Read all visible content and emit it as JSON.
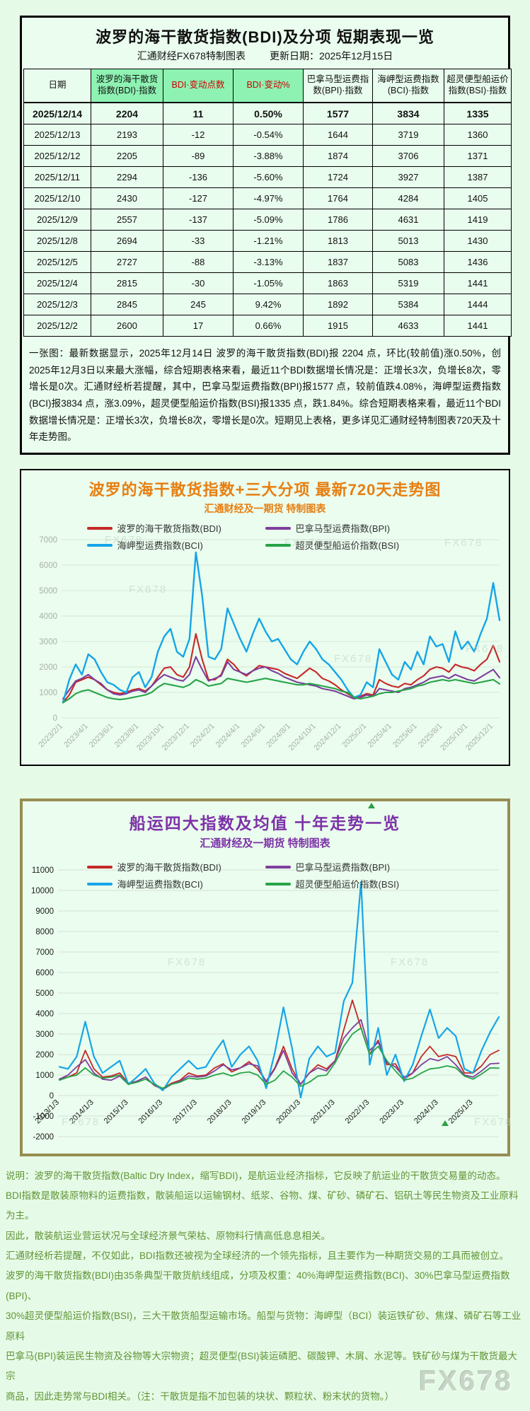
{
  "watermark": "FX678",
  "section1": {
    "title": "波罗的海干散货指数(BDI)及分项 短期表现一览",
    "subtitle": "汇通财经FX678特制图表",
    "update_date": "更新日期：2025年12月15日",
    "table": {
      "headers": [
        "日期",
        "波罗的海干散货指数(BDI)·指数",
        "BDI·变动点数",
        "BDI·变动%",
        "巴拿马型运费指数(BPI)·指数",
        "海岬型运费指数(BCI)·指数",
        "超灵便型船运价指数(BSI)·指数"
      ],
      "header_green_bg_cols": [
        1,
        2,
        3
      ],
      "header_red_text_cols": [
        2,
        3
      ],
      "rows": [
        [
          "2025/12/14",
          "2204",
          "11",
          "0.50%",
          "1577",
          "3834",
          "1335"
        ],
        [
          "2025/12/13",
          "2193",
          "-12",
          "-0.54%",
          "1644",
          "3719",
          "1360"
        ],
        [
          "2025/12/12",
          "2205",
          "-89",
          "-3.88%",
          "1874",
          "3706",
          "1371"
        ],
        [
          "2025/12/11",
          "2294",
          "-136",
          "-5.60%",
          "1724",
          "3927",
          "1387"
        ],
        [
          "2025/12/10",
          "2430",
          "-127",
          "-4.97%",
          "1764",
          "4284",
          "1405"
        ],
        [
          "2025/12/9",
          "2557",
          "-137",
          "-5.09%",
          "1786",
          "4631",
          "1419"
        ],
        [
          "2025/12/8",
          "2694",
          "-33",
          "-1.21%",
          "1813",
          "5013",
          "1430"
        ],
        [
          "2025/12/5",
          "2727",
          "-88",
          "-3.13%",
          "1837",
          "5083",
          "1436"
        ],
        [
          "2025/12/4",
          "2815",
          "-30",
          "-1.05%",
          "1863",
          "5319",
          "1441"
        ],
        [
          "2025/12/3",
          "2845",
          "245",
          "9.42%",
          "1892",
          "5384",
          "1444"
        ],
        [
          "2025/12/2",
          "2600",
          "17",
          "0.66%",
          "1915",
          "4633",
          "1441"
        ]
      ]
    },
    "summary": "一张图：最新数据显示，2025年12月14日 波罗的海干散货指数(BDI)报 2204 点，环比(较前值)涨0.50%，创2025年12月3日以来最大涨幅，综合短期表格来看，最近11个BDI数据增长情况是：正增长3次，负增长8次，零增长是0次。汇通财经析若提醒，其中，巴拿马型运费指数(BPI)报1577 点，较前值跌4.08%，海岬型运费指数(BCI)报3834 点，涨3.09%，超灵便型船运价指数(BSI)报1335 点，跌1.84%。综合短期表格来看，最近11个BDI数据增长情况是：正增长3次，负增长8次，零增长是0次。短期见上表格，更多详见汇通财经特制图表720天及十年走势图。"
  },
  "section2": {
    "title": "波罗的海干散货指数+三大分项  最新720天走势图",
    "subtitle": "汇通财经及一期货 特制图表"
  },
  "section3": {
    "title": "船运四大指数及均值 十年走势一览",
    "subtitle": "汇通财经及一期货 特制图表"
  },
  "footer": {
    "lines": [
      "说明：波罗的海干散货指数(Baltic Dry Index，缩写BDI)，是航运业经济指标，它反映了航运业的干散货交易量的动态。",
      "BDI指数是散装原物料的运费指数，散装船运以运输钢材、纸浆、谷物、煤、矿砂、磷矿石、铝矾土等民生物资及工业原料为主。",
      "因此，散装航运业营运状况与全球经济景气荣枯、原物料行情高低息息相关。",
      "汇通财经析若提醒，不仅如此，BDI指数还被视为全球经济的一个领先指标，且主要作为一种期货交易的工具而被创立。",
      "波罗的海干散货指数(BDI)由35条典型干散货航线组成，分项及权重：40%海岬型运费指数(BCI)、30%巴拿马型运费指数(BPI)、",
      "30%超灵便型船运价指数(BSI)，三大干散货船型运输市场。船型与货物：海岬型（BCI）装运铁矿砂、焦煤、磷矿石等工业原料",
      "巴拿马(BPI)装运民生物资及谷物等大宗物资；超灵便型(BSI)装运磷肥、碳酸钾、木屑、水泥等。铁矿砂与煤为干散货最大宗",
      "商品，因此走势常与BDI相关。（注：干散货是指不加包装的块状、颗粒状、粉末状的货物。）"
    ]
  },
  "chart_data": [
    {
      "type": "line",
      "title": "波罗的海干散货指数+三大分项  最新720天走势图",
      "subtitle": "汇通财经及一期货 特制图表",
      "ylim": [
        0,
        7000
      ],
      "ystep": 1000,
      "grid": true,
      "legend_position": "top-inside",
      "axis_label_color": "#a9b0a9",
      "grid_color": "#d5e7d9",
      "xtick_labels": [
        "2023/2/1",
        "2023/4/1",
        "2023/6/1",
        "2023/8/1",
        "2023/10/1",
        "2023/12/1",
        "2024/2/1",
        "2024/4/1",
        "2024/6/1",
        "2024/8/1",
        "2024/10/1",
        "2024/12/1",
        "2025/2/1",
        "2025/4/1",
        "2025/6/1",
        "2025/8/1",
        "2025/10/1",
        "2025/12/1"
      ],
      "xtick_positions": [
        0,
        4,
        8,
        12,
        16,
        20,
        24,
        28,
        32,
        36,
        40,
        44,
        48,
        52,
        56,
        60,
        64,
        68
      ],
      "series": [
        {
          "name": "波罗的海干散货指数(BDI)",
          "color": "#c62828",
          "values": [
            600,
            900,
            1400,
            1500,
            1600,
            1500,
            1300,
            1100,
            1000,
            950,
            1000,
            1100,
            1150,
            1050,
            1250,
            1600,
            1950,
            2000,
            1700,
            1600,
            2000,
            3300,
            2300,
            1500,
            1500,
            1700,
            2300,
            2100,
            1800,
            1650,
            1850,
            2050,
            2000,
            1950,
            1900,
            1750,
            1650,
            1550,
            1750,
            1950,
            1800,
            1550,
            1450,
            1300,
            1100,
            950,
            800,
            850,
            950,
            900,
            1500,
            1350,
            1250,
            1200,
            1350,
            1300,
            1500,
            1650,
            1900,
            2000,
            1950,
            1800,
            2100,
            2000,
            1950,
            1850,
            2100,
            2300,
            2845,
            2204
          ]
        },
        {
          "name": "巴拿马型运费指数(BPI)",
          "color": "#7e3f9d",
          "values": [
            750,
            1100,
            1450,
            1550,
            1700,
            1500,
            1350,
            1100,
            950,
            900,
            950,
            1050,
            1100,
            1000,
            1250,
            1500,
            1700,
            1600,
            1500,
            1450,
            1700,
            2400,
            1900,
            1450,
            1550,
            1650,
            2200,
            1900,
            1800,
            1700,
            1850,
            1950,
            2000,
            1850,
            1750,
            1600,
            1500,
            1400,
            1350,
            1300,
            1250,
            1150,
            1100,
            1050,
            950,
            850,
            750,
            800,
            900,
            850,
            1150,
            1100,
            1050,
            1000,
            1150,
            1200,
            1300,
            1400,
            1550,
            1600,
            1650,
            1550,
            1700,
            1600,
            1500,
            1450,
            1600,
            1750,
            1900,
            1577
          ]
        },
        {
          "name": "海岬型运费指数(BCI)",
          "color": "#16a5e8",
          "values": [
            600,
            1500,
            2100,
            1700,
            2500,
            2300,
            1800,
            1400,
            1300,
            1100,
            1000,
            1600,
            1800,
            1200,
            1600,
            2600,
            3200,
            3500,
            2600,
            2400,
            3100,
            6500,
            4800,
            2400,
            2300,
            2700,
            4300,
            3700,
            3100,
            2600,
            3300,
            3900,
            3400,
            3000,
            3100,
            2700,
            2300,
            2100,
            2600,
            3000,
            2700,
            2300,
            2100,
            1800,
            1500,
            1100,
            800,
            900,
            1400,
            1200,
            2700,
            2200,
            1700,
            1500,
            2200,
            1900,
            2600,
            2100,
            3200,
            2800,
            2900,
            2200,
            3400,
            2700,
            3000,
            2600,
            3300,
            3900,
            5300,
            3834
          ]
        },
        {
          "name": "超灵便型船运价指数(BSI)",
          "color": "#27a348",
          "values": [
            600,
            750,
            950,
            1050,
            1100,
            1000,
            900,
            800,
            750,
            720,
            750,
            800,
            850,
            900,
            1000,
            1200,
            1350,
            1300,
            1250,
            1200,
            1300,
            1500,
            1400,
            1250,
            1300,
            1350,
            1550,
            1500,
            1450,
            1400,
            1450,
            1500,
            1550,
            1500,
            1450,
            1400,
            1350,
            1300,
            1300,
            1350,
            1300,
            1250,
            1200,
            1150,
            1050,
            1000,
            800,
            750,
            800,
            850,
            950,
            1000,
            1000,
            1050,
            1100,
            1150,
            1250,
            1300,
            1400,
            1450,
            1500,
            1450,
            1500,
            1450,
            1400,
            1350,
            1400,
            1450,
            1500,
            1335
          ]
        }
      ]
    },
    {
      "type": "line",
      "title": "船运四大指数及均值 十年走势一览",
      "subtitle": "汇通财经及一期货 特制图表",
      "ylim": [
        -2000,
        11000
      ],
      "ystep": 1000,
      "grid": true,
      "legend_position": "top-inside",
      "axis_label_color": "#1a1a1a",
      "grid_color": "#d8ded8",
      "xtick_labels": [
        "2013/1/3",
        "2014/1/3",
        "2015/1/3",
        "2016/1/3",
        "2017/1/3",
        "2018/1/3",
        "2019/1/3",
        "2020/1/3",
        "2021/1/3",
        "2022/1/3",
        "2023/1/3",
        "2024/1/3",
        "2025/1/3"
      ],
      "xtick_positions": [
        0,
        4,
        8,
        12,
        16,
        20,
        24,
        28,
        32,
        36,
        40,
        44,
        48
      ],
      "series": [
        {
          "name": "波罗的海干散货指数(BDI)",
          "color": "#c62828",
          "values": [
            800,
            900,
            1100,
            2200,
            1300,
            900,
            950,
            1100,
            600,
            700,
            900,
            500,
            350,
            600,
            750,
            1100,
            950,
            1000,
            1350,
            1550,
            1150,
            1350,
            1650,
            1300,
            700,
            1350,
            2400,
            1300,
            550,
            1100,
            1500,
            1300,
            1700,
            3200,
            4650,
            3300,
            2000,
            2700,
            1500,
            1550,
            800,
            1100,
            1900,
            2400,
            1900,
            2000,
            1900,
            1100,
            1100,
            1450,
            2000,
            2204
          ]
        },
        {
          "name": "巴拿马型运费指数(BPI)",
          "color": "#7e3f9d",
          "values": [
            800,
            1000,
            1400,
            1750,
            1100,
            800,
            750,
            950,
            550,
            700,
            900,
            500,
            300,
            550,
            700,
            950,
            900,
            950,
            1200,
            1500,
            1250,
            1350,
            1550,
            1450,
            650,
            1300,
            2200,
            1100,
            550,
            1100,
            1350,
            1200,
            1700,
            2800,
            3300,
            3700,
            2200,
            2600,
            1600,
            1400,
            900,
            1100,
            1500,
            1800,
            1700,
            1900,
            1500,
            1000,
            900,
            1200,
            1550,
            1577
          ]
        },
        {
          "name": "海岬型运费指数(BCI)",
          "color": "#16a5e8",
          "values": [
            1400,
            1300,
            1900,
            3600,
            1900,
            1100,
            1400,
            1700,
            550,
            900,
            1300,
            600,
            250,
            900,
            1300,
            1700,
            1300,
            1400,
            2100,
            2700,
            1400,
            2000,
            2400,
            1700,
            350,
            2100,
            4300,
            2300,
            -100,
            1800,
            2400,
            1900,
            2100,
            4600,
            5500,
            10400,
            1500,
            3300,
            1000,
            2000,
            700,
            1500,
            2900,
            4200,
            2800,
            3300,
            2900,
            1300,
            1100,
            2200,
            3100,
            3834
          ]
        },
        {
          "name": "超灵便型船运价指数(BSI)",
          "color": "#27a348",
          "values": [
            750,
            900,
            1000,
            1350,
            1000,
            850,
            900,
            1000,
            550,
            650,
            800,
            550,
            350,
            550,
            650,
            850,
            800,
            850,
            1000,
            1100,
            950,
            1100,
            1150,
            1000,
            550,
            750,
            1200,
            900,
            450,
            650,
            950,
            1000,
            1600,
            2400,
            3000,
            3300,
            2000,
            2400,
            1700,
            1200,
            750,
            850,
            1100,
            1300,
            1350,
            1450,
            1350,
            950,
            800,
            1050,
            1350,
            1335
          ]
        }
      ]
    }
  ]
}
